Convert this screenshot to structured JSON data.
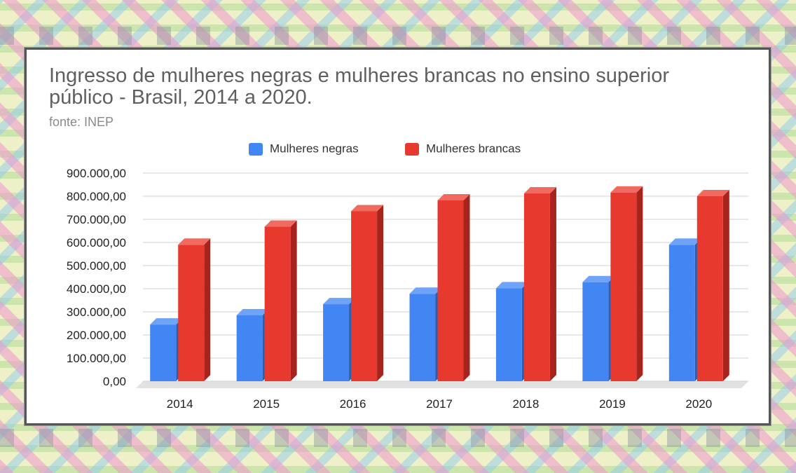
{
  "title": "Ingresso de mulheres negras e mulheres brancas no ensino superior público - Brasil, 2014 a 2020.",
  "source": "fonte: INEP",
  "colors": {
    "negras": "#4286f4",
    "negras_side": "#2d5fb0",
    "negras_top": "#6fa3f7",
    "brancas": "#e8392f",
    "brancas_side": "#a6241c",
    "brancas_top": "#f06a60"
  },
  "legend": {
    "negras": "Mulheres negras",
    "brancas": "Mulheres brancas"
  },
  "chart_data": {
    "type": "bar",
    "title": "Ingresso de mulheres negras e mulheres brancas no ensino superior público - Brasil, 2014 a 2020.",
    "subtitle": "fonte: INEP",
    "categories": [
      "2014",
      "2015",
      "2016",
      "2017",
      "2018",
      "2019",
      "2020"
    ],
    "series": [
      {
        "name": "Mulheres negras",
        "values": [
          245000,
          285000,
          333000,
          378000,
          402000,
          428000,
          590000
        ]
      },
      {
        "name": "Mulheres brancas",
        "values": [
          590000,
          668000,
          735000,
          782000,
          812000,
          816000,
          800000
        ]
      }
    ],
    "ylim": [
      0,
      900000
    ],
    "yticks": [
      0,
      100000,
      200000,
      300000,
      400000,
      500000,
      600000,
      700000,
      800000,
      900000
    ],
    "ytick_labels": [
      "0,00",
      "100.000,00",
      "200.000,00",
      "300.000,00",
      "400.000,00",
      "500.000,00",
      "600.000,00",
      "700.000,00",
      "800.000,00",
      "900.000,00"
    ],
    "grid": true,
    "legend_position": "top",
    "style": "3d-column"
  }
}
